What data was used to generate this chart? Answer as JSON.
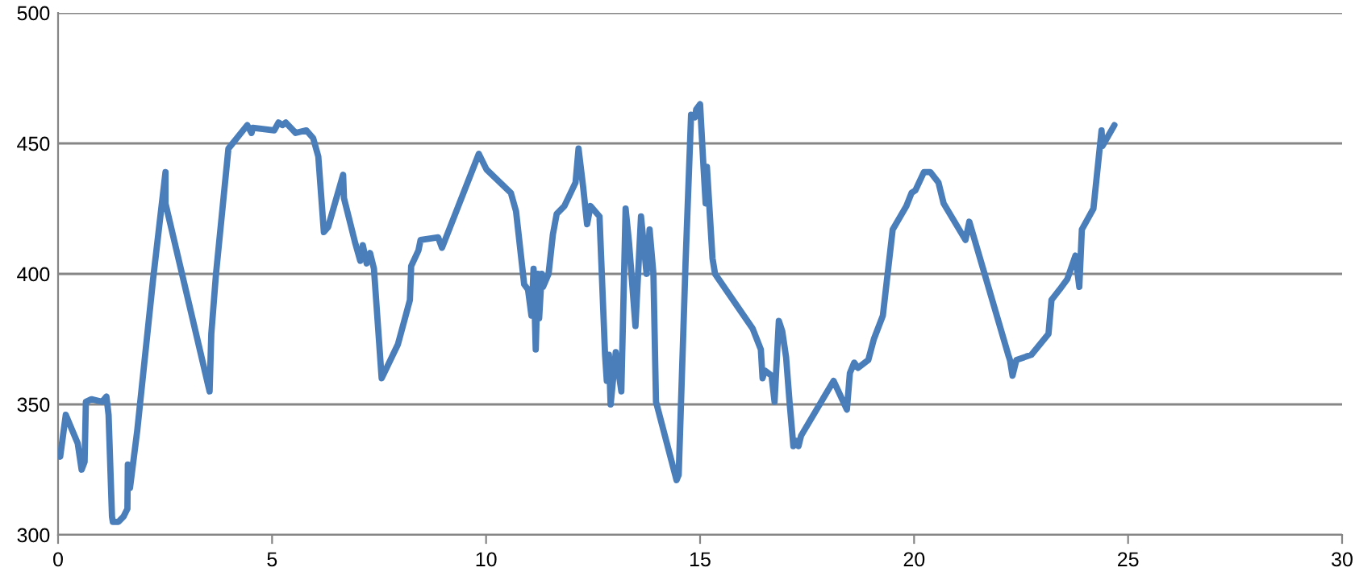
{
  "chart_data": {
    "type": "line",
    "xlim": [
      0,
      30
    ],
    "ylim": [
      300,
      500
    ],
    "xticks": [
      0,
      5,
      10,
      15,
      20,
      25,
      30
    ],
    "yticks": [
      300,
      350,
      400,
      450,
      500
    ],
    "grid": "y",
    "marker": "none",
    "line_style": "solid",
    "series": [
      {
        "color": "#4a7ebb",
        "x": [
          0,
          0.05,
          0.18,
          0.46,
          0.55,
          0.62,
          0.65,
          0.78,
          1.03,
          1.13,
          1.18,
          1.26,
          1.28,
          1.41,
          1.53,
          1.62,
          1.63,
          1.68,
          1.85,
          2.22,
          2.51,
          2.51,
          3.54,
          3.58,
          3.69,
          3.98,
          4.42,
          4.52,
          4.55,
          5.05,
          5.15,
          5.24,
          5.32,
          5.55,
          5.8,
          5.96,
          6.08,
          6.21,
          6.31,
          6.66,
          6.68,
          6.94,
          7.06,
          7.12,
          7.21,
          7.29,
          7.38,
          7.56,
          7.94,
          8.22,
          8.25,
          8.42,
          8.47,
          8.88,
          8.97,
          9.83,
          10.01,
          10.58,
          10.7,
          10.89,
          10.98,
          11.06,
          11.11,
          11.16,
          11.21,
          11.24,
          11.3,
          11.33,
          11.46,
          11.56,
          11.65,
          11.83,
          12.09,
          12.16,
          12.27,
          12.36,
          12.44,
          12.65,
          12.78,
          12.82,
          12.87,
          12.91,
          13.03,
          13.16,
          13.26,
          13.34,
          13.49,
          13.62,
          13.75,
          13.82,
          13.91,
          13.97,
          14.45,
          14.5,
          14.66,
          14.79,
          14.88,
          14.91,
          15.0,
          15.08,
          15.13,
          15.16,
          15.29,
          15.35,
          16.23,
          16.42,
          16.46,
          16.51,
          16.67,
          16.74,
          16.84,
          16.92,
          17.01,
          17.09,
          17.18,
          17.26,
          17.3,
          17.36,
          18.12,
          18.43,
          18.5,
          18.6,
          18.69,
          18.93,
          19.06,
          19.27,
          19.5,
          19.82,
          19.94,
          20.03,
          20.23,
          20.38,
          20.57,
          20.69,
          21.2,
          21.29,
          22.2,
          22.24,
          22.3,
          22.39,
          22.74,
          23.14,
          23.21,
          23.4,
          23.58,
          23.77,
          23.86,
          23.92,
          24.19,
          24.38,
          24.4,
          24.68
        ],
        "values": [
          331,
          330,
          346,
          335,
          325,
          328,
          351,
          352,
          351,
          353,
          346,
          307,
          305,
          305,
          307,
          310,
          327,
          318,
          340,
          398,
          439,
          427,
          355,
          377,
          400,
          448,
          457,
          454,
          456,
          455,
          458,
          457,
          458,
          454,
          455,
          452,
          445,
          416,
          418,
          438,
          429,
          412,
          405,
          411,
          404,
          408,
          402,
          360,
          373,
          390,
          403,
          409,
          413,
          414,
          410,
          446,
          440,
          431,
          424,
          396,
          394,
          384,
          402,
          371,
          400,
          383,
          400,
          395,
          400,
          415,
          423,
          426,
          435,
          448,
          433,
          419,
          426,
          422,
          369,
          359,
          369,
          350,
          370,
          355,
          425,
          412,
          380,
          422,
          400,
          417,
          400,
          351,
          321,
          323,
          404,
          461,
          460,
          463,
          465,
          441,
          427,
          441,
          406,
          400,
          379,
          371,
          360,
          363,
          361,
          351,
          382,
          378,
          368,
          351,
          334,
          336,
          334,
          338,
          359,
          348,
          362,
          366,
          364,
          367,
          375,
          384,
          417,
          426,
          431,
          432,
          439,
          439,
          435,
          427,
          413,
          420,
          369,
          367,
          361,
          367,
          369,
          377,
          390,
          394,
          398,
          407,
          395,
          417,
          425,
          455,
          449,
          457
        ]
      }
    ]
  }
}
